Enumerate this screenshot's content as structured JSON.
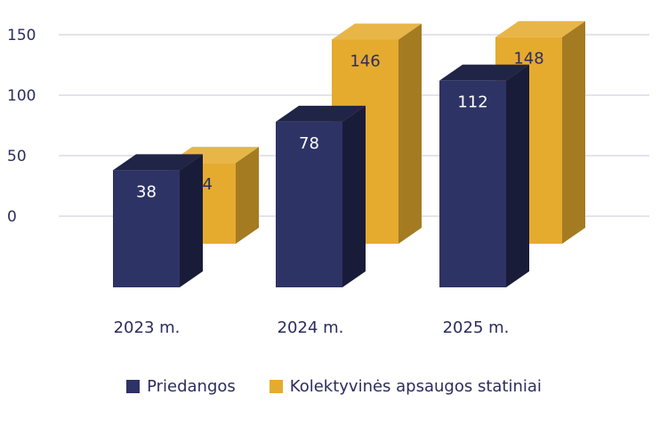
{
  "chart_data": {
    "type": "bar",
    "categories": [
      "2023 m.",
      "2024 m.",
      "2025 m."
    ],
    "series": [
      {
        "name": "Priedangos",
        "values": [
          38,
          78,
          112
        ],
        "color": "#2e3366"
      },
      {
        "name": "Kolektyvinės apsaugos statiniai",
        "values": [
          44,
          146,
          148
        ],
        "color": "#e5ab2f"
      }
    ],
    "yticks": [
      0,
      50,
      100,
      150
    ],
    "ylim": [
      0,
      150
    ],
    "grid": true,
    "legend_position": "bottom",
    "style": "3d-bars"
  }
}
